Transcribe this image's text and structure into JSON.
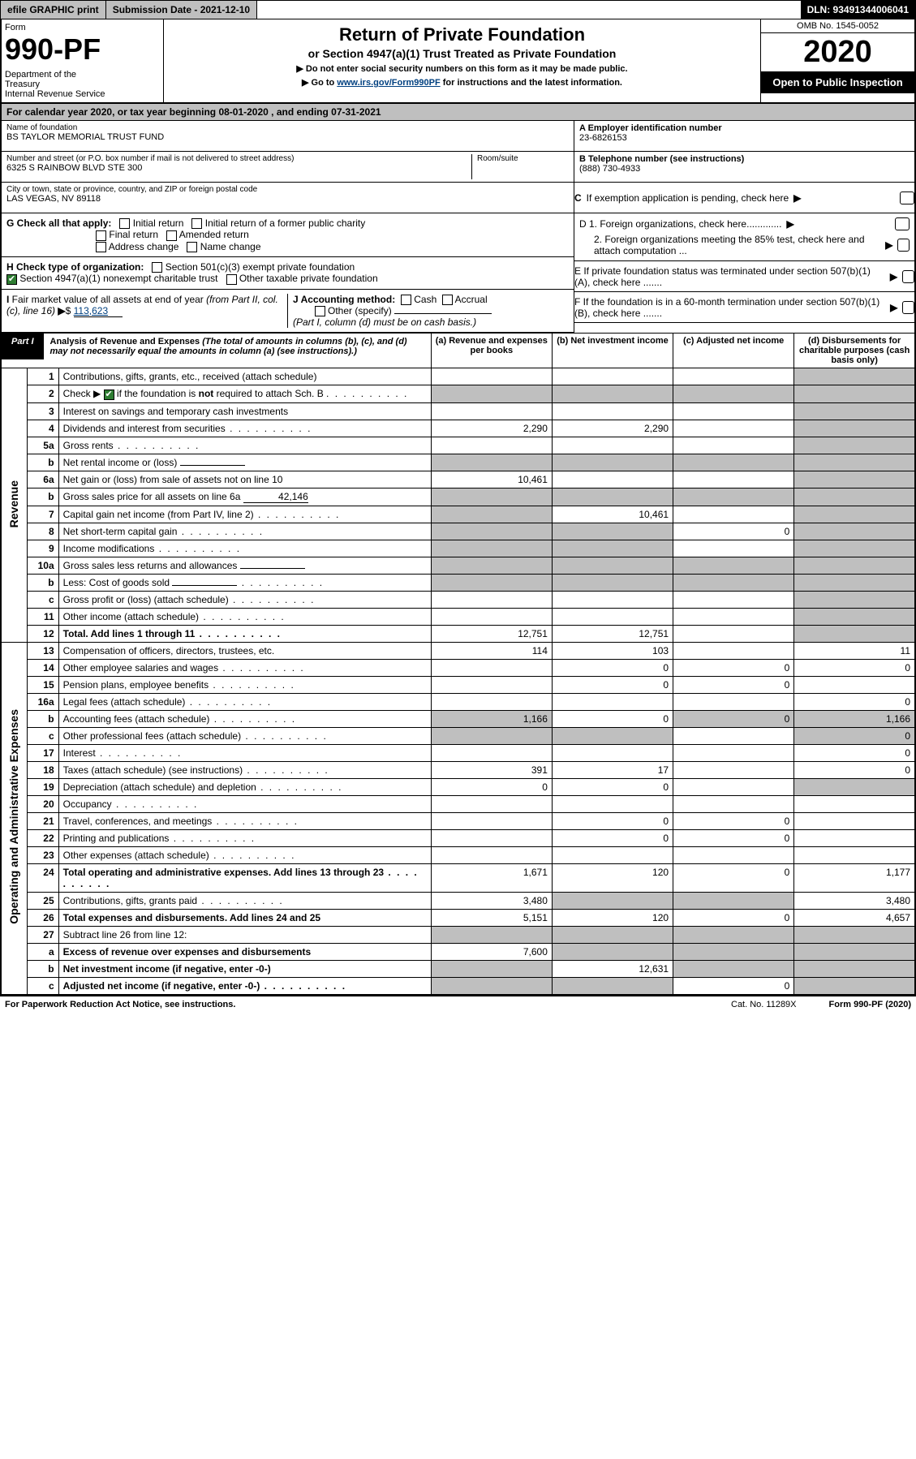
{
  "topbar": {
    "efile": "efile GRAPHIC print",
    "submission": "Submission Date - 2021-12-10",
    "dln": "DLN: 93491344006041"
  },
  "header": {
    "form_word": "Form",
    "form_num": "990-PF",
    "dept": "Department of the Treasury\nInternal Revenue Service",
    "title": "Return of Private Foundation",
    "subtitle": "or Section 4947(a)(1) Trust Treated as Private Foundation",
    "instr1": "▶ Do not enter social security numbers on this form as it may be made public.",
    "instr2_pre": "▶ Go to ",
    "instr2_link": "www.irs.gov/Form990PF",
    "instr2_post": " for instructions and the latest information.",
    "omb": "OMB No. 1545-0052",
    "year": "2020",
    "open": "Open to Public Inspection"
  },
  "cal_year": "For calendar year 2020, or tax year beginning 08-01-2020             , and ending 07-31-2021",
  "foundation": {
    "name_lbl": "Name of foundation",
    "name": "BS TAYLOR MEMORIAL TRUST FUND",
    "addr_lbl": "Number and street (or P.O. box number if mail is not delivered to street address)",
    "addr": "6325 S RAINBOW BLVD STE 300",
    "room_lbl": "Room/suite",
    "city_lbl": "City or town, state or province, country, and ZIP or foreign postal code",
    "city": "LAS VEGAS, NV  89118",
    "ein_lbl": "A Employer identification number",
    "ein": "23-6826153",
    "tel_lbl": "B Telephone number (see instructions)",
    "tel": "(888) 730-4933",
    "c_lbl": "C If exemption application is pending, check here",
    "d1": "D 1. Foreign organizations, check here.............",
    "d2": "2. Foreign organizations meeting the 85% test, check here and attach computation ...",
    "e_lbl": "E  If private foundation status was terminated under section 507(b)(1)(A), check here .......",
    "f_lbl": "F  If the foundation is in a 60-month termination under section 507(b)(1)(B), check here .......",
    "g_lbl": "G Check all that apply:",
    "g_opts": [
      "Initial return",
      "Initial return of a former public charity",
      "Final return",
      "Amended return",
      "Address change",
      "Name change"
    ],
    "h_lbl": "H Check type of organization:",
    "h_opts": [
      "Section 501(c)(3) exempt private foundation",
      "Section 4947(a)(1) nonexempt charitable trust",
      "Other taxable private foundation"
    ],
    "i_lbl": "I Fair market value of all assets at end of year (from Part II, col. (c), line 16) ▶$ ",
    "i_val": "113,623",
    "j_lbl": "J Accounting method:",
    "j_opts": [
      "Cash",
      "Accrual",
      "Other (specify)"
    ],
    "j_note": "(Part I, column (d) must be on cash basis.)"
  },
  "part1": {
    "tab": "Part I",
    "title": "Analysis of Revenue and Expenses",
    "note": " (The total of amounts in columns (b), (c), and (d) may not necessarily equal the amounts in column (a) (see instructions).)",
    "cols": {
      "a": "(a)   Revenue and expenses per books",
      "b": "(b)   Net investment income",
      "c": "(c)   Adjusted net income",
      "d": "(d)   Disbursements for charitable purposes (cash basis only)"
    }
  },
  "side_labels": {
    "revenue": "Revenue",
    "expenses": "Operating and Administrative Expenses"
  },
  "rows": [
    {
      "n": "1",
      "d": "Contributions, gifts, grants, etc., received (attach schedule)"
    },
    {
      "n": "2",
      "d": "Check ▶ ☑ if the foundation is not required to attach Sch. B",
      "dot": true
    },
    {
      "n": "3",
      "d": "Interest on savings and temporary cash investments"
    },
    {
      "n": "4",
      "d": "Dividends and interest from securities",
      "dot": true,
      "a": "2,290",
      "b": "2,290"
    },
    {
      "n": "5a",
      "d": "Gross rents",
      "dot": true
    },
    {
      "n": "b",
      "d": "Net rental income or (loss)",
      "under": true
    },
    {
      "n": "6a",
      "d": "Net gain or (loss) from sale of assets not on line 10",
      "a": "10,461"
    },
    {
      "n": "b",
      "d": "Gross sales price for all assets on line 6a",
      "under": true,
      "uval": "42,146"
    },
    {
      "n": "7",
      "d": "Capital gain net income (from Part IV, line 2)",
      "dot": true,
      "b": "10,461"
    },
    {
      "n": "8",
      "d": "Net short-term capital gain",
      "dot": true,
      "c": "0"
    },
    {
      "n": "9",
      "d": "Income modifications",
      "dot": true
    },
    {
      "n": "10a",
      "d": "Gross sales less returns and allowances",
      "under": true
    },
    {
      "n": "b",
      "d": "Less: Cost of goods sold",
      "dot": true,
      "under": true
    },
    {
      "n": "c",
      "d": "Gross profit or (loss) (attach schedule)",
      "dot": true
    },
    {
      "n": "11",
      "d": "Other income (attach schedule)",
      "dot": true
    },
    {
      "n": "12",
      "d": "Total. Add lines 1 through 11",
      "dot": true,
      "bold": true,
      "a": "12,751",
      "b": "12,751"
    }
  ],
  "exp_rows": [
    {
      "n": "13",
      "d": "Compensation of officers, directors, trustees, etc.",
      "a": "114",
      "b": "103",
      "dcol": "11"
    },
    {
      "n": "14",
      "d": "Other employee salaries and wages",
      "dot": true,
      "b": "0",
      "c": "0",
      "dcol": "0"
    },
    {
      "n": "15",
      "d": "Pension plans, employee benefits",
      "dot": true,
      "b": "0",
      "c": "0"
    },
    {
      "n": "16a",
      "d": "Legal fees (attach schedule)",
      "dot": true,
      "dcol": "0"
    },
    {
      "n": "b",
      "d": "Accounting fees (attach schedule)",
      "dot": true,
      "a": "1,166",
      "b": "0",
      "c": "0",
      "dcol": "1,166"
    },
    {
      "n": "c",
      "d": "Other professional fees (attach schedule)",
      "dot": true,
      "dcol": "0"
    },
    {
      "n": "17",
      "d": "Interest",
      "dot": true,
      "dcol": "0"
    },
    {
      "n": "18",
      "d": "Taxes (attach schedule) (see instructions)",
      "dot": true,
      "a": "391",
      "b": "17",
      "dcol": "0"
    },
    {
      "n": "19",
      "d": "Depreciation (attach schedule) and depletion",
      "dot": true,
      "a": "0",
      "b": "0"
    },
    {
      "n": "20",
      "d": "Occupancy",
      "dot": true
    },
    {
      "n": "21",
      "d": "Travel, conferences, and meetings",
      "dot": true,
      "b": "0",
      "c": "0"
    },
    {
      "n": "22",
      "d": "Printing and publications",
      "dot": true,
      "b": "0",
      "c": "0"
    },
    {
      "n": "23",
      "d": "Other expenses (attach schedule)",
      "dot": true
    },
    {
      "n": "24",
      "d": "Total operating and administrative expenses. Add lines 13 through 23",
      "dot": true,
      "bold": true,
      "a": "1,671",
      "b": "120",
      "c": "0",
      "dcol": "1,177"
    },
    {
      "n": "25",
      "d": "Contributions, gifts, grants paid",
      "dot": true,
      "a": "3,480",
      "dcol": "3,480"
    },
    {
      "n": "26",
      "d": "Total expenses and disbursements. Add lines 24 and 25",
      "bold": true,
      "a": "5,151",
      "b": "120",
      "c": "0",
      "dcol": "4,657"
    },
    {
      "n": "27",
      "d": "Subtract line 26 from line 12:"
    },
    {
      "n": "a",
      "d": "Excess of revenue over expenses and disbursements",
      "bold": true,
      "a": "7,600"
    },
    {
      "n": "b",
      "d": "Net investment income (if negative, enter -0-)",
      "bold": true,
      "b": "12,631"
    },
    {
      "n": "c",
      "d": "Adjusted net income (if negative, enter -0-)",
      "dot": true,
      "bold": true,
      "c": "0"
    }
  ],
  "footer": {
    "left": "For Paperwork Reduction Act Notice, see instructions.",
    "mid": "Cat. No. 11289X",
    "right": "Form 990-PF (2020)"
  }
}
